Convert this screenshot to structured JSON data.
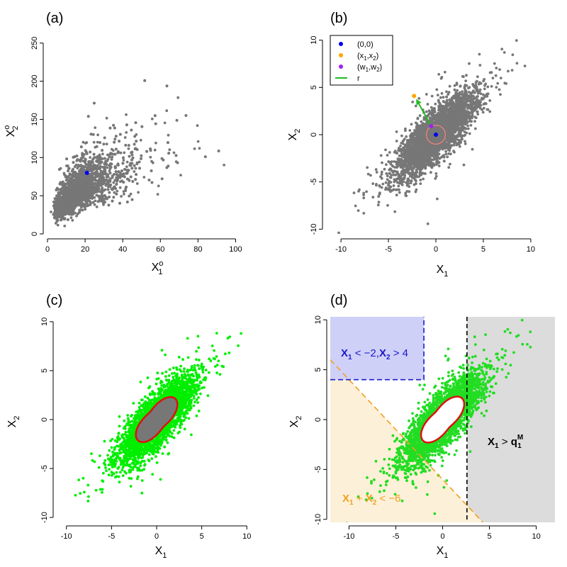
{
  "chart_data": [
    {
      "panel": "(a)",
      "type": "scatter",
      "x_tick_labels": [
        "0",
        "20",
        "40",
        "60",
        "80",
        "100"
      ],
      "y_tick_labels": [
        "0",
        "50",
        "100",
        "150",
        "200",
        "250"
      ],
      "xlim": [
        0,
        110
      ],
      "ylim": [
        0,
        260
      ],
      "point_color": "#777777",
      "highlight_points": [
        {
          "x": 21,
          "y": 80,
          "color": "#0000ee"
        }
      ],
      "xlabel": "X1o",
      "ylabel": "X2o"
    },
    {
      "panel": "(b)",
      "type": "scatter",
      "x_tick_labels": [
        "-10",
        "-5",
        "0",
        "5",
        "10"
      ],
      "y_tick_labels": [
        "-10",
        "-5",
        "0",
        "5",
        "10"
      ],
      "xlim": [
        -10,
        10
      ],
      "ylim": [
        -10,
        10
      ],
      "point_color": "#777777",
      "highlight_points": [
        {
          "x": 0,
          "y": 0,
          "color": "#0000ee"
        },
        {
          "x": -2.3,
          "y": 4.1,
          "color": "#ffa500"
        },
        {
          "x": -0.5,
          "y": 0.9,
          "color": "#a020f0"
        }
      ],
      "arrow": {
        "from": [
          -0.5,
          0.9
        ],
        "to": [
          -2.3,
          4.1
        ],
        "color": "#22bb22"
      },
      "circle": {
        "center": [
          0,
          0
        ],
        "radius": 1.0,
        "color": "#ff8080"
      },
      "legend": {
        "position": "top-left",
        "entries": [
          {
            "label": "(0,0)",
            "color": "#0000ee",
            "marker": "point"
          },
          {
            "label": "(x1,x2)",
            "color": "#ffa500",
            "marker": "point"
          },
          {
            "label": "(w1,w2)",
            "color": "#a020f0",
            "marker": "point"
          },
          {
            "label": "r",
            "color": "#22bb22",
            "marker": "line"
          }
        ]
      },
      "xlabel": "X1",
      "ylabel": "X2"
    },
    {
      "panel": "(c)",
      "type": "scatter",
      "x_tick_labels": [
        "-10",
        "-5",
        "0",
        "5",
        "10"
      ],
      "y_tick_labels": [
        "-10",
        "-5",
        "0",
        "5",
        "10"
      ],
      "xlim": [
        -10,
        10
      ],
      "ylim": [
        -10,
        10
      ],
      "point_color": "#00ee00",
      "region": {
        "shape": "peanut",
        "fill": "#777777",
        "border": "#dd1111"
      },
      "xlabel": "X1",
      "ylabel": "X2"
    },
    {
      "panel": "(d)",
      "type": "scatter",
      "x_tick_labels": [
        "-10",
        "-5",
        "0",
        "5",
        "10"
      ],
      "y_tick_labels": [
        "-10",
        "-5",
        "0",
        "5",
        "10"
      ],
      "xlim": [
        -12,
        12
      ],
      "ylim": [
        -10.3,
        10.3
      ],
      "point_color": "#22dd22",
      "region": {
        "shape": "peanut",
        "fill": "#ffffff",
        "border": "#dd1111"
      },
      "xlabel": "X1",
      "ylabel": "X2",
      "risk_regions": [
        {
          "label": "X1 < −2,X2 > 4",
          "condition": "x1 < -2 and x2 > 4",
          "fill": "#cfd0f8",
          "border": "#1a1acc"
        },
        {
          "label": "X1 > q1M",
          "condition": "x1 > 2.6",
          "threshold": 2.6,
          "fill": "#dcdcdc",
          "border": "#000000"
        },
        {
          "label": "X1 + X2 < −6",
          "condition": "x1 + x2 < -6",
          "fill": "#fdf0d8",
          "border": "#f0a020"
        }
      ]
    }
  ],
  "figure": {
    "labels": {
      "a": {
        "tag": "(a)"
      },
      "b": {
        "tag": "(b)"
      },
      "c": {
        "tag": "(c)"
      },
      "d": {
        "tag": "(d)"
      }
    },
    "axis_text": {
      "x_main": "X",
      "sub1": "1",
      "sub2": "2",
      "sup_o": "o"
    },
    "legend_b": {
      "e1": "(0,0)",
      "e2_a": "(x",
      "e2_b": "1",
      "e2_c": ",x",
      "e2_d": "2",
      "e2_e": ")",
      "e3_a": "(w",
      "e3_b": "1",
      "e3_c": ",w",
      "e3_d": "2",
      "e3_e": ")",
      "e4": "r"
    },
    "region_labels": {
      "blue_a": "X",
      "blue_b": "1",
      "blue_c": " < −2,",
      "blue_d": "X",
      "blue_e": "2",
      "blue_f": " > 4",
      "gray_a": "X",
      "gray_b": "1",
      "gray_c": " > ",
      "gray_d": "q",
      "gray_e": "M",
      "gray_f": "1",
      "orange_a": "X",
      "orange_b": "1",
      "orange_c": " + ",
      "orange_d": "X",
      "orange_e": "2",
      "orange_f": " < −6"
    }
  }
}
